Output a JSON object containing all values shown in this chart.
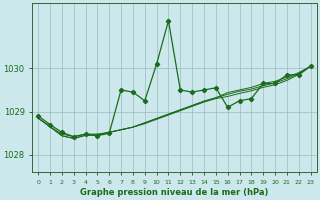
{
  "title": "Graphe pression niveau de la mer (hPa)",
  "bg_color": "#cce8ec",
  "line_color": "#1a6b1a",
  "grid_color": "#99bbbb",
  "axis_color": "#336633",
  "ylim": [
    1027.6,
    1031.5
  ],
  "yticks": [
    1028,
    1029,
    1030
  ],
  "xlim": [
    -0.5,
    23.5
  ],
  "xticks": [
    0,
    1,
    2,
    3,
    4,
    5,
    6,
    7,
    8,
    9,
    10,
    11,
    12,
    13,
    14,
    15,
    16,
    17,
    18,
    19,
    20,
    21,
    22,
    23
  ],
  "series1": [
    1028.9,
    1028.7,
    1028.52,
    1028.42,
    1028.48,
    1028.44,
    1028.5,
    1029.5,
    1029.45,
    1029.25,
    1030.1,
    1031.1,
    1029.5,
    1029.45,
    1029.5,
    1029.55,
    1029.1,
    1029.25,
    1029.3,
    1029.65,
    1029.65,
    1029.85,
    1029.85,
    1030.05
  ],
  "series2": [
    1028.85,
    1028.65,
    1028.48,
    1028.42,
    1028.48,
    1028.48,
    1028.52,
    1028.58,
    1028.64,
    1028.72,
    1028.82,
    1028.92,
    1029.02,
    1029.12,
    1029.22,
    1029.3,
    1029.35,
    1029.42,
    1029.48,
    1029.56,
    1029.62,
    1029.72,
    1029.86,
    1030.05
  ],
  "series3": [
    1028.85,
    1028.65,
    1028.44,
    1028.38,
    1028.45,
    1028.46,
    1028.52,
    1028.58,
    1028.64,
    1028.74,
    1028.84,
    1028.94,
    1029.04,
    1029.14,
    1029.24,
    1029.32,
    1029.4,
    1029.47,
    1029.52,
    1029.6,
    1029.66,
    1029.76,
    1029.88,
    1030.05
  ],
  "series4": [
    1028.85,
    1028.65,
    1028.44,
    1028.38,
    1028.45,
    1028.46,
    1028.52,
    1028.58,
    1028.64,
    1028.74,
    1028.84,
    1028.94,
    1029.04,
    1029.14,
    1029.24,
    1029.32,
    1029.44,
    1029.5,
    1029.56,
    1029.65,
    1029.7,
    1029.8,
    1029.9,
    1030.05
  ]
}
